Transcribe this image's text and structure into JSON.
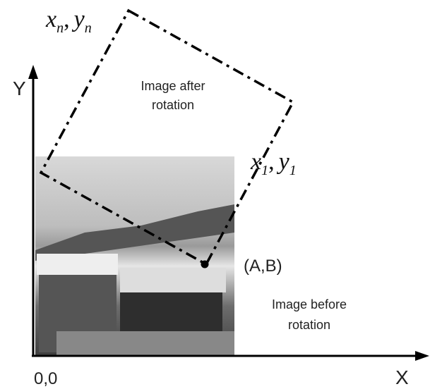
{
  "axes": {
    "y_label": "Y",
    "x_label": "X",
    "origin": "0,0"
  },
  "labels": {
    "after": [
      "Image after",
      "rotation"
    ],
    "before": [
      "Image before",
      "rotation"
    ],
    "center": "(A,B)",
    "corner_n": {
      "x": "x",
      "x_sub": "n",
      "sep": ",",
      "y": "y",
      "y_sub": "n"
    },
    "corner_1": {
      "x": "x",
      "x_sub": "1",
      "sep": ",",
      "y": "y",
      "y_sub": "1"
    }
  }
}
